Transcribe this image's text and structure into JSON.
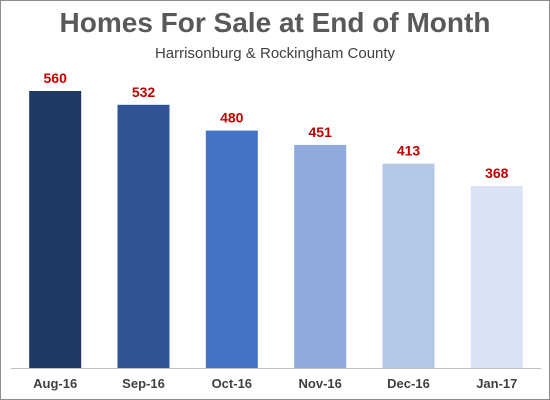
{
  "chart_data": {
    "type": "bar",
    "title": "Homes For Sale at End of Month",
    "subtitle": "Harrisonburg & Rockingham County",
    "xlabel": "",
    "ylabel": "",
    "categories": [
      "Aug-16",
      "Sep-16",
      "Oct-16",
      "Nov-16",
      "Dec-16",
      "Jan-17"
    ],
    "values": [
      560,
      532,
      480,
      451,
      413,
      368
    ],
    "data_labels": [
      "560",
      "532",
      "480",
      "451",
      "413",
      "368"
    ],
    "ylim": [
      0,
      600
    ],
    "grid": false,
    "legend": "none",
    "bar_colors": [
      "#1f3864",
      "#2f5597",
      "#4472c4",
      "#8faadc",
      "#b4c7e7",
      "#dae3f3"
    ],
    "data_label_color": "#c00000",
    "axis_color": "#bfbfbf"
  }
}
